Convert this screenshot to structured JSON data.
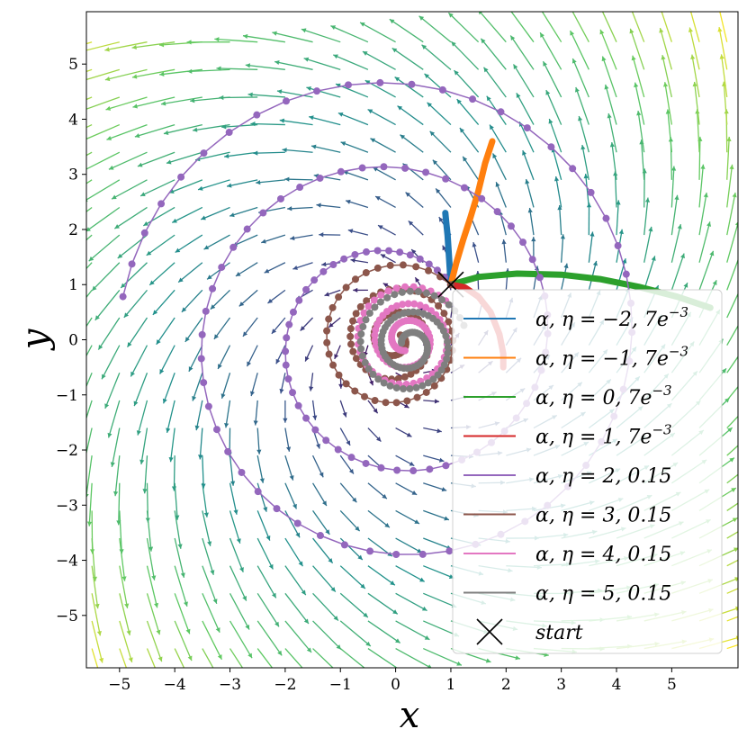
{
  "chart_data": {
    "type": "line",
    "title": "",
    "xlabel": "x",
    "ylabel": "y",
    "xlim": [
      -5.6,
      6.2
    ],
    "ylim": [
      -5.95,
      5.95
    ],
    "xticks": [
      -5,
      -4,
      -3,
      -2,
      -1,
      0,
      1,
      2,
      3,
      4,
      5
    ],
    "yticks": [
      -5,
      -4,
      -3,
      -2,
      -1,
      0,
      1,
      2,
      3,
      4,
      5
    ],
    "grid": false,
    "legend_position": "lower-right",
    "background": "quiver vector field, arrows colored by magnitude (viridis)",
    "start": {
      "x": 1,
      "y": 1,
      "marker": "x",
      "label": "start"
    },
    "series": [
      {
        "name": "α, η = −2, 7e⁻³",
        "color": "#1f77b4",
        "markers": false,
        "linewidth": 7,
        "points": [
          [
            1,
            1
          ],
          [
            0.98,
            1.3
          ],
          [
            0.96,
            1.6
          ],
          [
            0.94,
            1.9
          ],
          [
            0.92,
            2.1
          ],
          [
            0.9,
            2.3
          ]
        ]
      },
      {
        "name": "α, η = −1, 7e⁻³",
        "color": "#ff7f0e",
        "markers": false,
        "linewidth": 7,
        "points": [
          [
            1,
            1
          ],
          [
            1.1,
            1.4
          ],
          [
            1.22,
            1.8
          ],
          [
            1.35,
            2.2
          ],
          [
            1.5,
            2.7
          ],
          [
            1.62,
            3.2
          ],
          [
            1.75,
            3.6
          ]
        ]
      },
      {
        "name": "α, η = 0, 7e⁻³",
        "color": "#2ca02c",
        "markers": false,
        "linewidth": 7,
        "points": [
          [
            1,
            1
          ],
          [
            1.5,
            1.14
          ],
          [
            2.2,
            1.2
          ],
          [
            3.0,
            1.18
          ],
          [
            3.7,
            1.1
          ],
          [
            4.4,
            0.96
          ],
          [
            5.1,
            0.78
          ],
          [
            5.7,
            0.58
          ]
        ]
      },
      {
        "name": "α, η = 1, 7e⁻³",
        "color": "#d62728",
        "markers": false,
        "linewidth": 7,
        "points": [
          [
            1,
            1
          ],
          [
            1.25,
            0.95
          ],
          [
            1.5,
            0.78
          ],
          [
            1.72,
            0.5
          ],
          [
            1.88,
            0.1
          ],
          [
            1.95,
            -0.25
          ],
          [
            1.95,
            -0.5
          ]
        ]
      },
      {
        "name": "α, η = 2, 0.15",
        "color": "#9467bd",
        "markers": true,
        "linewidth": 1.5,
        "points": []
      },
      {
        "name": "α, η = 3, 0.15",
        "color": "#8c564b",
        "markers": true,
        "linewidth": 1.5,
        "points": []
      },
      {
        "name": "α, η = 4, 0.15",
        "color": "#e377c2",
        "markers": true,
        "linewidth": 1.5,
        "points": []
      },
      {
        "name": "α, η = 5, 0.15",
        "color": "#7f7f7f",
        "markers": true,
        "linewidth": 1.5,
        "points": []
      }
    ],
    "legend": {
      "entries": [
        {
          "math": "α, η = −2, 7e",
          "sup": "−3",
          "color": "#1f77b4"
        },
        {
          "math": "α, η = −1, 7e",
          "sup": "−3",
          "color": "#ff7f0e"
        },
        {
          "math": "α, η = 0, 7e",
          "sup": "−3",
          "color": "#2ca02c"
        },
        {
          "math": "α, η = 1, 7e",
          "sup": "−3",
          "color": "#d62728"
        },
        {
          "math": "α, η = 2, 0.15",
          "sup": "",
          "color": "#9467bd"
        },
        {
          "math": "α, η = 3, 0.15",
          "sup": "",
          "color": "#8c564b"
        },
        {
          "math": "α, η = 4, 0.15",
          "sup": "",
          "color": "#e377c2"
        },
        {
          "math": "α, η = 5, 0.15",
          "sup": "",
          "color": "#7f7f7f"
        },
        {
          "math": "start",
          "sup": "",
          "color": "#000000",
          "marker": "x"
        }
      ]
    }
  }
}
